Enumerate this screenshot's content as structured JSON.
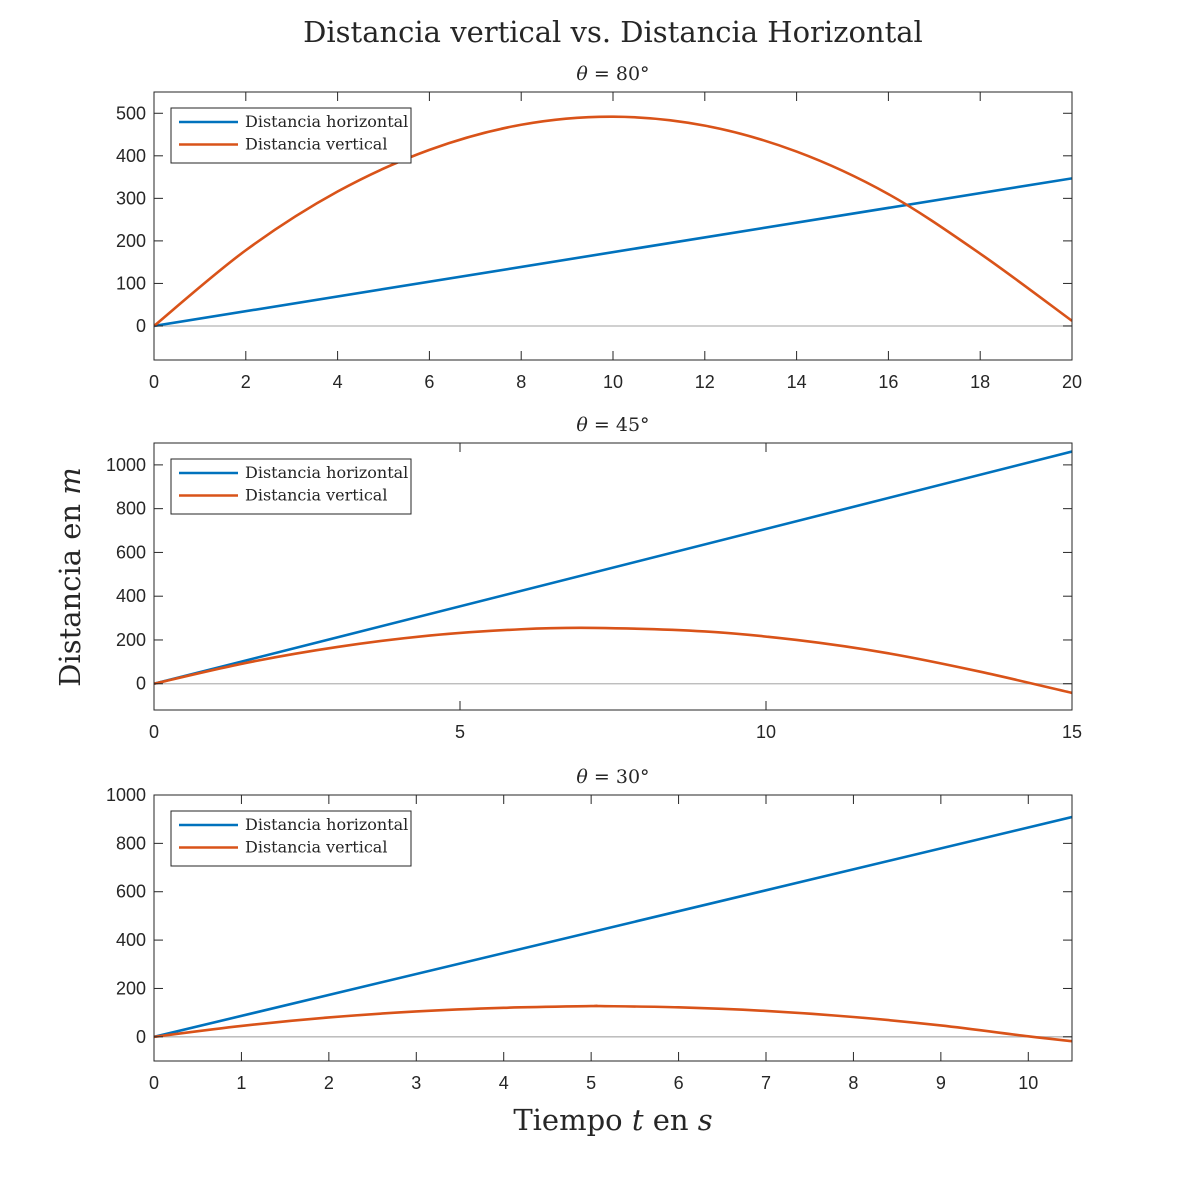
{
  "figure": {
    "suptitle": "Distancia vertical vs. Distancia Horizontal",
    "ylabel_main": "Distancia en ",
    "ylabel_var": "m",
    "xlabel_main": "Tiempo ",
    "xlabel_var1": "t",
    "xlabel_mid": " en ",
    "xlabel_var2": "s"
  },
  "colors": {
    "horizontal": "#0072BD",
    "vertical": "#D95319",
    "zero_line": "#b4b4b4",
    "axes": "#262626"
  },
  "chart_data": [
    {
      "type": "line",
      "title_symbol": "θ",
      "title_value": " = 80°",
      "xlim": [
        0,
        20
      ],
      "ylim": [
        -80,
        550
      ],
      "xticks": [
        0,
        2,
        4,
        6,
        8,
        10,
        12,
        14,
        16,
        18,
        20
      ],
      "yticks": [
        0,
        100,
        200,
        300,
        400,
        500
      ],
      "legend_position": "top-left",
      "series": [
        {
          "name": "Distancia horizontal",
          "color_key": "horizontal",
          "x": [
            0,
            20
          ],
          "y": [
            0,
            347
          ]
        },
        {
          "name": "Distancia vertical",
          "color_key": "vertical",
          "x": [
            0,
            2,
            4,
            6,
            8,
            10,
            12,
            14,
            16,
            18,
            20
          ],
          "y": [
            0,
            178,
            316,
            414,
            473,
            492,
            471,
            410,
            310,
            170,
            12
          ]
        }
      ],
      "zero_line": true
    },
    {
      "type": "line",
      "title_symbol": "θ",
      "title_value": " = 45°",
      "xlim": [
        0,
        15
      ],
      "ylim": [
        -120,
        1100
      ],
      "xticks": [
        0,
        5,
        10,
        15
      ],
      "yticks": [
        0,
        200,
        400,
        600,
        800,
        1000
      ],
      "legend_position": "top-left",
      "series": [
        {
          "name": "Distancia horizontal",
          "color_key": "horizontal",
          "x": [
            0,
            15
          ],
          "y": [
            0,
            1061
          ]
        },
        {
          "name": "Distancia vertical",
          "color_key": "vertical",
          "x": [
            0,
            1.5,
            3,
            4.5,
            6,
            7.2,
            9,
            10.5,
            12,
            13.5,
            15
          ],
          "y": [
            0,
            95,
            168,
            220,
            249,
            255,
            239,
            200,
            139,
            55,
            -42
          ]
        }
      ],
      "zero_line": true
    },
    {
      "type": "line",
      "title_symbol": "θ",
      "title_value": " = 30°",
      "xlim": [
        0,
        10.5
      ],
      "ylim": [
        -100,
        1000
      ],
      "xticks": [
        0,
        1,
        2,
        3,
        4,
        5,
        6,
        7,
        8,
        9,
        10
      ],
      "yticks": [
        0,
        200,
        400,
        600,
        800,
        1000
      ],
      "legend_position": "top-left",
      "series": [
        {
          "name": "Distancia horizontal",
          "color_key": "horizontal",
          "x": [
            0,
            10.5
          ],
          "y": [
            0,
            909
          ]
        },
        {
          "name": "Distancia vertical",
          "color_key": "vertical",
          "x": [
            0,
            1,
            2,
            3,
            4,
            5,
            5.1,
            6,
            7,
            8,
            9,
            10,
            10.5
          ],
          "y": [
            0,
            45,
            80,
            105,
            120,
            127,
            127,
            122,
            107,
            82,
            47,
            2,
            -18
          ]
        }
      ],
      "zero_line": true
    }
  ]
}
